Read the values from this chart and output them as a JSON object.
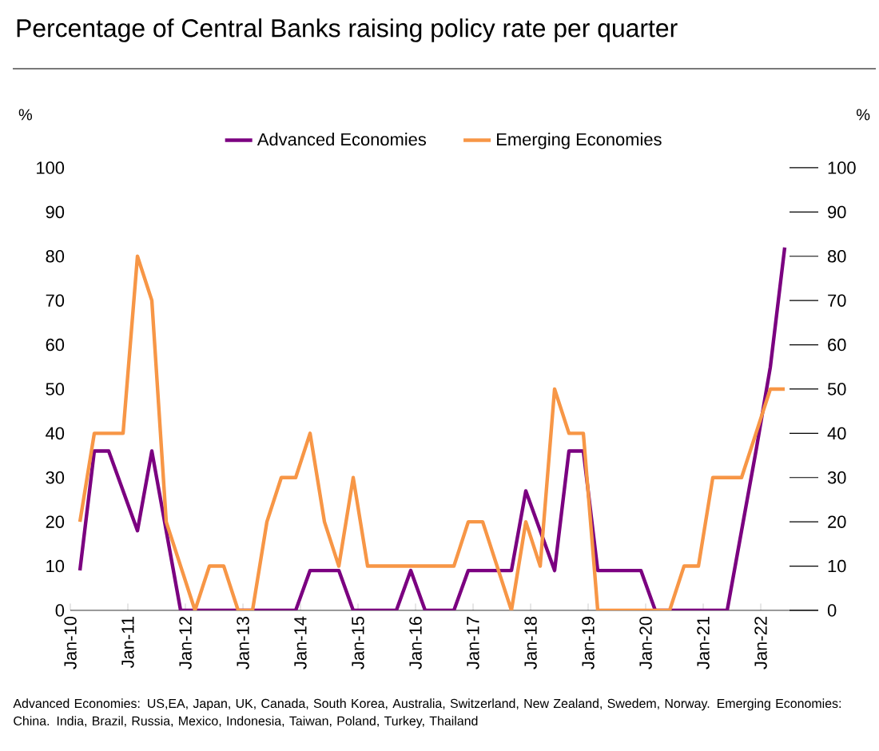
{
  "chart_data": {
    "type": "line",
    "title": "Percentage of Central Banks raising policy rate per quarter",
    "ylabel": "%",
    "y2label": "%",
    "legend": "top",
    "x": [
      "2010-03",
      "2010-06",
      "2010-09",
      "2010-12",
      "2011-03",
      "2011-06",
      "2011-09",
      "2011-12",
      "2012-03",
      "2012-06",
      "2012-09",
      "2012-12",
      "2013-03",
      "2013-06",
      "2013-09",
      "2013-12",
      "2014-03",
      "2014-06",
      "2014-09",
      "2014-12",
      "2015-03",
      "2015-06",
      "2015-09",
      "2015-12",
      "2016-03",
      "2016-06",
      "2016-09",
      "2016-12",
      "2017-03",
      "2017-06",
      "2017-09",
      "2017-12",
      "2018-03",
      "2018-06",
      "2018-09",
      "2018-12",
      "2019-03",
      "2019-06",
      "2019-09",
      "2019-12",
      "2020-03",
      "2020-06",
      "2020-09",
      "2020-12",
      "2021-03",
      "2021-06",
      "2021-09",
      "2021-12",
      "2022-03",
      "2022-06"
    ],
    "series": [
      {
        "name": "Advanced Economies",
        "color": "#7b0080",
        "values": [
          9,
          36,
          36,
          27,
          18,
          36,
          18,
          0,
          0,
          0,
          0,
          0,
          0,
          0,
          0,
          0,
          9,
          9,
          9,
          0,
          0,
          0,
          0,
          9,
          0,
          0,
          0,
          9,
          9,
          9,
          9,
          27,
          18,
          9,
          36,
          36,
          9,
          9,
          9,
          9,
          0,
          0,
          0,
          0,
          0,
          0,
          18,
          36,
          55,
          82
        ]
      },
      {
        "name": "Emerging Economies",
        "color": "#f79646",
        "values": [
          20,
          40,
          40,
          40,
          80,
          70,
          20,
          10,
          0,
          10,
          10,
          0,
          0,
          20,
          30,
          30,
          40,
          20,
          10,
          30,
          10,
          10,
          10,
          10,
          10,
          10,
          10,
          20,
          20,
          10,
          0,
          20,
          10,
          50,
          40,
          40,
          0,
          0,
          0,
          0,
          0,
          0,
          10,
          10,
          30,
          30,
          30,
          40,
          50,
          50
        ]
      }
    ],
    "xlim": [
      "2010-01",
      "2023-01"
    ],
    "xticks": [
      {
        "value": "2010-01",
        "label": "Jan-10"
      },
      {
        "value": "2011-01",
        "label": "Jan-11"
      },
      {
        "value": "2012-01",
        "label": "Jan-12"
      },
      {
        "value": "2013-01",
        "label": "Jan-13"
      },
      {
        "value": "2014-01",
        "label": "Jan-14"
      },
      {
        "value": "2015-01",
        "label": "Jan-15"
      },
      {
        "value": "2016-01",
        "label": "Jan-16"
      },
      {
        "value": "2017-01",
        "label": "Jan-17"
      },
      {
        "value": "2018-01",
        "label": "Jan-18"
      },
      {
        "value": "2019-01",
        "label": "Jan-19"
      },
      {
        "value": "2020-01",
        "label": "Jan-20"
      },
      {
        "value": "2021-01",
        "label": "Jan-21"
      },
      {
        "value": "2022-01",
        "label": "Jan-22"
      }
    ],
    "ylim": [
      0,
      100
    ],
    "yticks": [
      0,
      10,
      20,
      30,
      40,
      50,
      60,
      70,
      80,
      90,
      100
    ],
    "y2lim": [
      0,
      100
    ],
    "y2ticks": [
      0,
      10,
      20,
      30,
      40,
      50,
      60,
      70,
      80,
      90,
      100
    ],
    "annotations": [
      "Advanced Economies: US,EA, Japan, UK, Canada, South Korea, Australia, Switzerland, New Zealand, Swedem, Norway. Emerging Economies: China. India, Brazil, Russia, Mexico, Indonesia, Taiwan, Poland, Turkey, Thailand"
    ]
  }
}
